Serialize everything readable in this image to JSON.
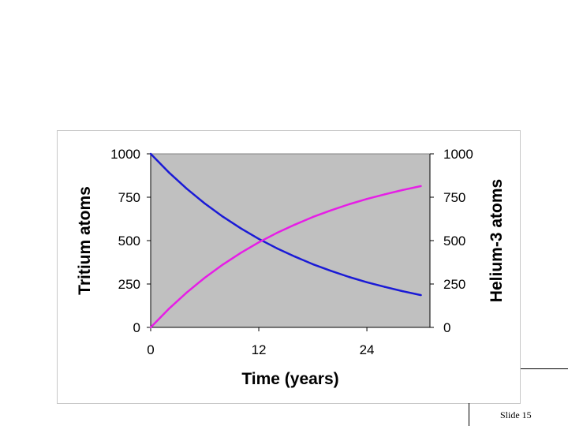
{
  "slide": {
    "label": "Slide 15"
  },
  "colors": {
    "plot_background": "#c0c0c0",
    "tritium": "#1a1ad6",
    "helium": "#e61ee6"
  },
  "chart_data": {
    "type": "line",
    "xlabel": "Time (years)",
    "ylabel_left": "Tritium atoms",
    "ylabel_right": "Helium-3 atoms",
    "xlim": [
      0,
      31
    ],
    "ylim": [
      0,
      1000
    ],
    "x_ticks": [
      0,
      12,
      24
    ],
    "y_ticks": [
      0,
      250,
      500,
      750,
      1000
    ],
    "grid": false,
    "legend": "none",
    "x": [
      0,
      2,
      4,
      6,
      8,
      10,
      12,
      14,
      16,
      18,
      20,
      22,
      24,
      26,
      28,
      30
    ],
    "series": [
      {
        "values": [
          1000,
          894,
          799,
          714,
          638,
          571,
          510,
          456,
          408,
          364,
          326,
          291,
          260,
          233,
          208,
          186
        ],
        "axis": "left",
        "color": "#1a1ad6"
      },
      {
        "values": [
          0,
          106,
          201,
          286,
          362,
          429,
          490,
          544,
          592,
          636,
          674,
          709,
          740,
          767,
          792,
          814
        ],
        "axis": "right",
        "color": "#e61ee6"
      }
    ]
  }
}
